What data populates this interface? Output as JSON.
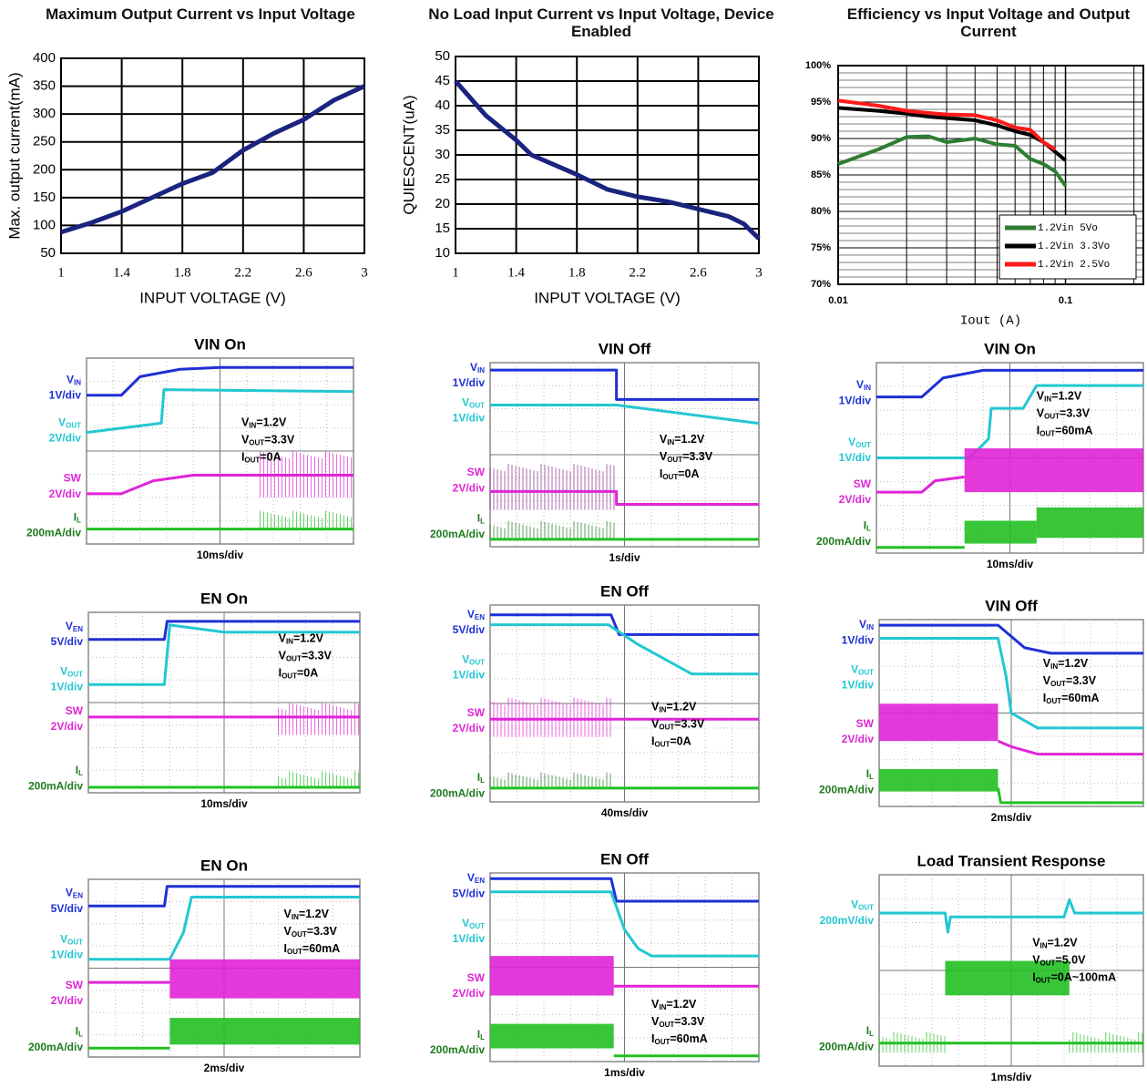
{
  "chart_data": [
    {
      "type": "line",
      "title": "Maximum Output Current vs Input Voltage",
      "xlabel": "INPUT VOLTAGE (V)",
      "ylabel": "Max. output current(mA)",
      "x": [
        1,
        1.2,
        1.4,
        1.6,
        1.8,
        2.0,
        2.2,
        2.4,
        2.6,
        2.8,
        3.0
      ],
      "values": [
        88,
        105,
        125,
        150,
        175,
        195,
        235,
        265,
        290,
        325,
        350
      ],
      "color": "#1a237e",
      "xlim": [
        1,
        3
      ],
      "xticks": [
        1,
        1.4,
        1.8,
        2.2,
        2.6,
        3
      ],
      "ylim": [
        50,
        400
      ],
      "yticks": [
        50,
        100,
        150,
        200,
        250,
        300,
        350,
        400
      ],
      "grid": true
    },
    {
      "type": "line",
      "title": "No Load Input Current vs Input Voltage, Device Enabled",
      "xlabel": "INPUT VOLTAGE (V)",
      "ylabel": "QUIESCENT(uA)",
      "x": [
        1,
        1.2,
        1.4,
        1.5,
        1.8,
        2.0,
        2.2,
        2.4,
        2.6,
        2.8,
        2.9,
        3.0
      ],
      "values": [
        45,
        38,
        33,
        30,
        26,
        23,
        21.5,
        20.5,
        19,
        17.5,
        16,
        13
      ],
      "color": "#1a237e",
      "xlim": [
        1,
        3
      ],
      "xticks": [
        1,
        1.4,
        1.8,
        2.2,
        2.6,
        3
      ],
      "ylim": [
        10,
        50
      ],
      "yticks": [
        10,
        15,
        20,
        25,
        30,
        35,
        40,
        45,
        50
      ],
      "grid": true
    },
    {
      "type": "line",
      "title": "Efficiency vs Input Voltage and Output Current",
      "xlabel": "Iout (A)",
      "xscale": "log",
      "x": [
        0.01,
        0.015,
        0.02,
        0.025,
        0.03,
        0.04,
        0.05,
        0.06,
        0.07,
        0.08,
        0.09,
        0.1
      ],
      "series": [
        {
          "name": "1.2Vin 5Vo",
          "color": "#2e7d32",
          "values": [
            86.5,
            88.5,
            90.2,
            90.3,
            89.5,
            90,
            89.2,
            89,
            87.2,
            86.5,
            85.5,
            83.5
          ]
        },
        {
          "name": "1.2Vin 3.3Vo",
          "color": "#000000",
          "values": [
            94.2,
            93.8,
            93.4,
            93,
            92.8,
            92.5,
            91.8,
            91,
            90.5,
            89.5,
            88.2,
            87
          ]
        },
        {
          "name": "1.2Vin 2.5Vo",
          "color": "#ff1a1a",
          "values": [
            95.2,
            94.5,
            93.8,
            93.5,
            93.3,
            93.2,
            92.5,
            91.5,
            91.2,
            89.5,
            88.5,
            null
          ]
        }
      ],
      "xlim": [
        0.01,
        0.22
      ],
      "xticks": [
        0.01,
        0.1
      ],
      "ylim": [
        70,
        100
      ],
      "yticks": [
        {
          "value": 70,
          "label": "70%"
        },
        {
          "value": 75,
          "label": "75%"
        },
        {
          "value": 80,
          "label": "80%"
        },
        {
          "value": 85,
          "label": "85%"
        },
        {
          "value": 90,
          "label": "90%"
        },
        {
          "value": 95,
          "label": "95%"
        },
        {
          "value": 100,
          "label": "100%"
        }
      ],
      "grid": true,
      "legend": "lower right"
    },
    {
      "type": "oscilloscope",
      "title": "VIN On",
      "timebase": "10ms/div",
      "channels": [
        {
          "name": "V",
          "sub": "IN",
          "scale": "1V/div"
        },
        {
          "name": "V",
          "sub": "OUT",
          "scale": "2V/div"
        },
        {
          "name": "SW",
          "scale": "2V/div"
        },
        {
          "name": "I",
          "sub": "L",
          "scale": "200mA/div"
        }
      ],
      "conditions": [
        {
          "name": "V",
          "sub": "IN",
          "text": "=1.2V"
        },
        {
          "name": "V",
          "sub": "OUT",
          "text": "=3.3V"
        },
        {
          "name": "I",
          "sub": "OUT",
          "text": "=0A"
        }
      ]
    },
    {
      "type": "oscilloscope",
      "title": "VIN Off",
      "timebase": "1s/div",
      "channels": [
        {
          "name": "V",
          "sub": "IN",
          "scale": "1V/div"
        },
        {
          "name": "V",
          "sub": "OUT",
          "scale": "1V/div"
        },
        {
          "name": "SW",
          "scale": "2V/div"
        },
        {
          "name": "I",
          "sub": "L",
          "scale": "200mA/div"
        }
      ],
      "conditions": [
        {
          "name": "V",
          "sub": "IN",
          "text": "=1.2V"
        },
        {
          "name": "V",
          "sub": "OUT",
          "text": "=3.3V"
        },
        {
          "name": "I",
          "sub": "OUT",
          "text": "=0A"
        }
      ]
    },
    {
      "type": "oscilloscope",
      "title": "VIN On",
      "timebase": "10ms/div",
      "channels": [
        {
          "name": "V",
          "sub": "IN",
          "scale": "1V/div"
        },
        {
          "name": "V",
          "sub": "OUT",
          "scale": "1V/div"
        },
        {
          "name": "SW",
          "scale": "2V/div"
        },
        {
          "name": "I",
          "sub": "L",
          "scale": "200mA/div"
        }
      ],
      "conditions": [
        {
          "name": "V",
          "sub": "IN",
          "text": "=1.2V"
        },
        {
          "name": "V",
          "sub": "OUT",
          "text": "=3.3V"
        },
        {
          "name": "I",
          "sub": "OUT",
          "text": "=60mA"
        }
      ]
    },
    {
      "type": "oscilloscope",
      "title": "EN On",
      "timebase": "10ms/div",
      "channels": [
        {
          "name": "V",
          "sub": "EN",
          "scale": "5V/div"
        },
        {
          "name": "V",
          "sub": "OUT",
          "scale": "1V/div"
        },
        {
          "name": "SW",
          "scale": "2V/div"
        },
        {
          "name": "I",
          "sub": "L",
          "scale": "200mA/div"
        }
      ],
      "conditions": [
        {
          "name": "V",
          "sub": "IN",
          "text": "=1.2V"
        },
        {
          "name": "V",
          "sub": "OUT",
          "text": "=3.3V"
        },
        {
          "name": "I",
          "sub": "OUT",
          "text": "=0A"
        }
      ]
    },
    {
      "type": "oscilloscope",
      "title": "EN Off",
      "timebase": "40ms/div",
      "channels": [
        {
          "name": "V",
          "sub": "EN",
          "scale": "5V/div"
        },
        {
          "name": "V",
          "sub": "OUT",
          "scale": "1V/div"
        },
        {
          "name": "SW",
          "scale": "2V/div"
        },
        {
          "name": "I",
          "sub": "L",
          "scale": "200mA/div"
        }
      ],
      "conditions": [
        {
          "name": "V",
          "sub": "IN",
          "text": "=1.2V"
        },
        {
          "name": "V",
          "sub": "OUT",
          "text": "=3.3V"
        },
        {
          "name": "I",
          "sub": "OUT",
          "text": "=0A"
        }
      ]
    },
    {
      "type": "oscilloscope",
      "title": "VIN Off",
      "timebase": "2ms/div",
      "channels": [
        {
          "name": "V",
          "sub": "IN",
          "scale": "1V/div"
        },
        {
          "name": "V",
          "sub": "OUT",
          "scale": "1V/div"
        },
        {
          "name": "SW",
          "scale": "2V/div"
        },
        {
          "name": "I",
          "sub": "L",
          "scale": "200mA/div"
        }
      ],
      "conditions": [
        {
          "name": "V",
          "sub": "IN",
          "text": "=1.2V"
        },
        {
          "name": "V",
          "sub": "OUT",
          "text": "=3.3V"
        },
        {
          "name": "I",
          "sub": "OUT",
          "text": "=60mA"
        }
      ]
    },
    {
      "type": "oscilloscope",
      "title": "EN On",
      "timebase": "2ms/div",
      "channels": [
        {
          "name": "V",
          "sub": "EN",
          "scale": "5V/div"
        },
        {
          "name": "V",
          "sub": "OUT",
          "scale": "1V/div"
        },
        {
          "name": "SW",
          "scale": "2V/div"
        },
        {
          "name": "I",
          "sub": "L",
          "scale": "200mA/div"
        }
      ],
      "conditions": [
        {
          "name": "V",
          "sub": "IN",
          "text": "=1.2V"
        },
        {
          "name": "V",
          "sub": "OUT",
          "text": "=3.3V"
        },
        {
          "name": "I",
          "sub": "OUT",
          "text": "=60mA"
        }
      ]
    },
    {
      "type": "oscilloscope",
      "title": "EN Off",
      "timebase": "1ms/div",
      "channels": [
        {
          "name": "V",
          "sub": "EN",
          "scale": "5V/div"
        },
        {
          "name": "V",
          "sub": "OUT",
          "scale": "1V/div"
        },
        {
          "name": "SW",
          "scale": "2V/div"
        },
        {
          "name": "I",
          "sub": "L",
          "scale": "200mA/div"
        }
      ],
      "conditions": [
        {
          "name": "V",
          "sub": "IN",
          "text": "=1.2V"
        },
        {
          "name": "V",
          "sub": "OUT",
          "text": "=3.3V"
        },
        {
          "name": "I",
          "sub": "OUT",
          "text": "=60mA"
        }
      ]
    },
    {
      "type": "oscilloscope",
      "title": "Load Transient Response",
      "timebase": "1ms/div",
      "channels": [
        {
          "name": "V",
          "sub": "OUT",
          "scale": "200mV/div"
        },
        {
          "name": "I",
          "sub": "L",
          "scale": "200mA/div"
        }
      ],
      "conditions": [
        {
          "name": "V",
          "sub": "IN",
          "text": "=1.2V"
        },
        {
          "name": "V",
          "sub": "OUT",
          "text": "=5.0V"
        },
        {
          "name": "I",
          "sub": "OUT",
          "text": "=0A~100mA"
        }
      ]
    }
  ]
}
